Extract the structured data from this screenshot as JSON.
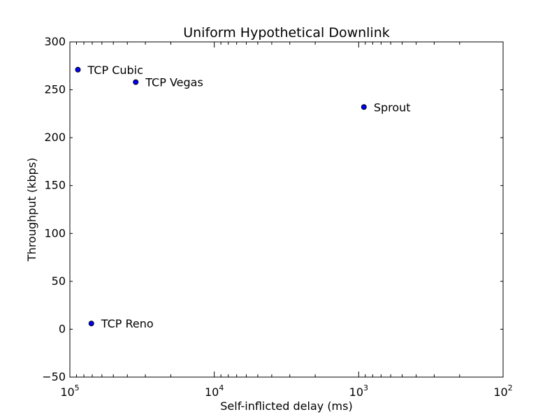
{
  "chart_data": {
    "type": "scatter",
    "title": "Uniform Hypothetical Downlink",
    "xlabel": "Self-inflicted delay (ms)",
    "ylabel": "Throughput (kbps)",
    "x_scale": "log",
    "x_reversed": true,
    "xlim": [
      100000,
      100
    ],
    "ylim": [
      -50,
      300
    ],
    "x_ticks": [
      {
        "value": 100000,
        "base": "10",
        "exp": "5"
      },
      {
        "value": 10000,
        "base": "10",
        "exp": "4"
      },
      {
        "value": 1000,
        "base": "10",
        "exp": "3"
      },
      {
        "value": 100,
        "base": "10",
        "exp": "2"
      }
    ],
    "y_ticks": [
      -50,
      0,
      50,
      100,
      150,
      200,
      250,
      300
    ],
    "y_tick_labels": [
      "−50",
      "0",
      "50",
      "100",
      "150",
      "200",
      "250",
      "300"
    ],
    "grid": false,
    "marker_color": "#0000ff",
    "points": [
      {
        "label": "TCP Cubic",
        "x": 88000,
        "y": 271
      },
      {
        "label": "TCP Vegas",
        "x": 35000,
        "y": 258
      },
      {
        "label": "Sprout",
        "x": 920,
        "y": 232
      },
      {
        "label": "TCP Reno",
        "x": 71000,
        "y": 6
      }
    ]
  }
}
